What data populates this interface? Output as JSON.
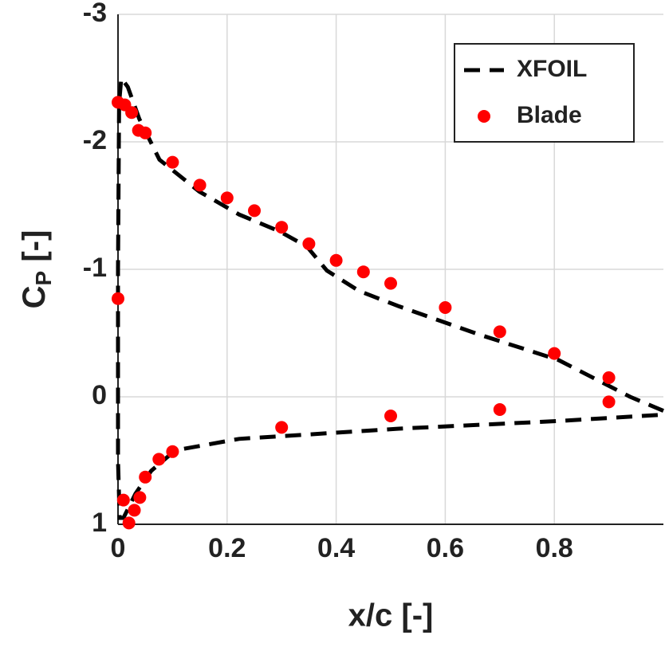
{
  "chart_data": {
    "type": "scatter",
    "xlabel": "x/c [-]",
    "ylabel": {
      "main": "C",
      "sub": "P",
      "rest": " [-]"
    },
    "xlim": [
      0,
      1
    ],
    "ylim": [
      -3,
      1
    ],
    "y_reversed": true,
    "xticks": [
      0,
      0.2,
      0.4,
      0.6,
      0.8
    ],
    "yticks": [
      -3,
      -2,
      -1,
      0,
      1
    ],
    "grid": true,
    "legend": "upper right",
    "series": [
      {
        "name": "XFOIL",
        "kind": "line",
        "style": "dashed",
        "color": "#000000",
        "x": [
          1.0,
          0.939,
          0.807,
          0.661,
          0.515,
          0.442,
          0.383,
          0.346,
          0.295,
          0.222,
          0.149,
          0.076,
          0.039,
          0.018,
          0.006,
          0.002,
          0,
          0,
          0.003,
          0.01,
          0.032,
          0.061,
          0.105,
          0.222,
          0.515,
          0.807,
          1.0
        ],
        "values": [
          0.11,
          0,
          -0.29,
          -0.49,
          -0.71,
          -0.83,
          -0.99,
          -1.18,
          -1.3,
          -1.43,
          -1.61,
          -1.86,
          -2.18,
          -2.43,
          -2.5,
          -2.3,
          -1.0,
          0.5,
          0.95,
          0.95,
          0.76,
          0.58,
          0.42,
          0.33,
          0.25,
          0.19,
          0.14
        ]
      },
      {
        "name": "Blade",
        "kind": "scatter",
        "color": "#ff0000",
        "x": [
          0,
          0.0125,
          0.025,
          0.0375,
          0.05,
          0.1,
          0.15,
          0.2,
          0.25,
          0.3,
          0.35,
          0.4,
          0.45,
          0.5,
          0.6,
          0.7,
          0.8,
          0.9,
          0,
          0.01,
          0.02,
          0.03,
          0.04,
          0.05,
          0.075,
          0.1,
          0.3,
          0.5,
          0.7,
          0.9
        ],
        "values": [
          -2.31,
          -2.29,
          -2.23,
          -2.09,
          -2.07,
          -1.84,
          -1.66,
          -1.56,
          -1.46,
          -1.33,
          -1.2,
          -1.07,
          -0.98,
          -0.89,
          -0.7,
          -0.51,
          -0.34,
          -0.15,
          -0.77,
          0.81,
          0.99,
          0.89,
          0.79,
          0.63,
          0.49,
          0.43,
          0.24,
          0.15,
          0.1,
          0.04
        ]
      }
    ]
  }
}
